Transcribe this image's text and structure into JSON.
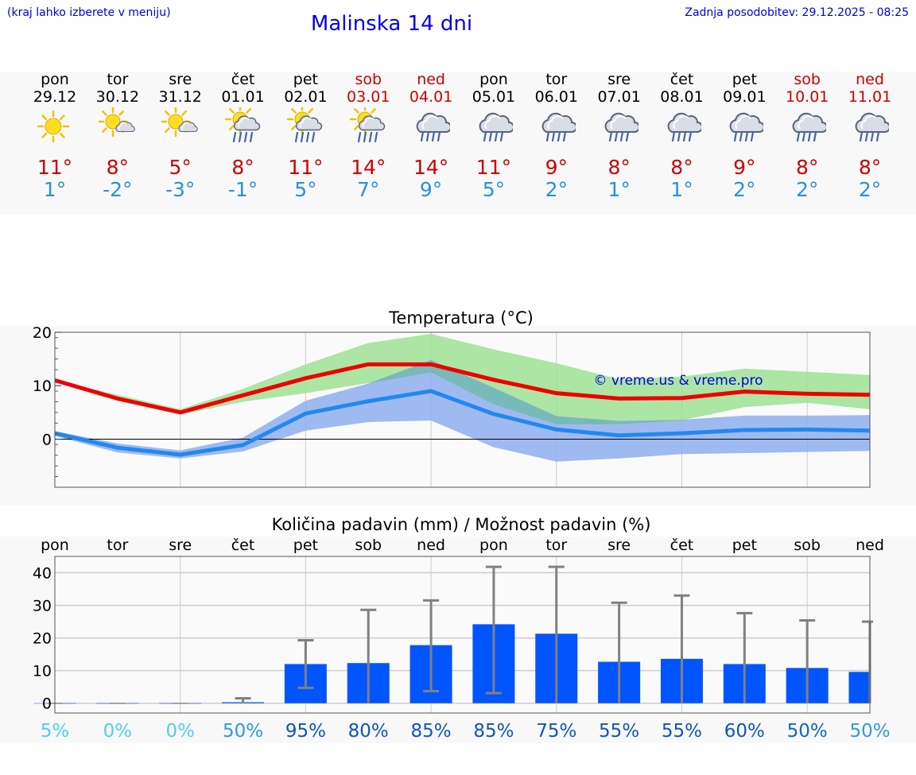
{
  "header": {
    "hint": "(kraj lahko izberete v meniju)",
    "title": "Malinska 14 dni",
    "updated": "Zadnja posodobitev: 29.12.2025 - 08:25"
  },
  "days": [
    {
      "name": "pon",
      "date": "29.12",
      "icon": "sun-icon",
      "tmax": "11°",
      "tmin": "1°",
      "weekend": false
    },
    {
      "name": "tor",
      "date": "30.12",
      "icon": "sun-cloud-icon",
      "tmax": "8°",
      "tmin": "-2°",
      "weekend": false
    },
    {
      "name": "sre",
      "date": "31.12",
      "icon": "sun-cloud-icon",
      "tmax": "5°",
      "tmin": "-3°",
      "weekend": false
    },
    {
      "name": "čet",
      "date": "01.01",
      "icon": "sun-cloud-rain-icon",
      "tmax": "8°",
      "tmin": "-1°",
      "weekend": false
    },
    {
      "name": "pet",
      "date": "02.01",
      "icon": "sun-cloud-rain-icon",
      "tmax": "11°",
      "tmin": "5°",
      "weekend": false
    },
    {
      "name": "sob",
      "date": "03.01",
      "icon": "sun-cloud-rain-icon",
      "tmax": "14°",
      "tmin": "7°",
      "weekend": true
    },
    {
      "name": "ned",
      "date": "04.01",
      "icon": "cloud-rain-icon",
      "tmax": "14°",
      "tmin": "9°",
      "weekend": true
    },
    {
      "name": "pon",
      "date": "05.01",
      "icon": "cloud-rain-icon",
      "tmax": "11°",
      "tmin": "5°",
      "weekend": false
    },
    {
      "name": "tor",
      "date": "06.01",
      "icon": "cloud-rain-icon",
      "tmax": "9°",
      "tmin": "2°",
      "weekend": false
    },
    {
      "name": "sre",
      "date": "07.01",
      "icon": "cloud-rain-icon",
      "tmax": "8°",
      "tmin": "1°",
      "weekend": false
    },
    {
      "name": "čet",
      "date": "08.01",
      "icon": "cloud-rain-icon",
      "tmax": "8°",
      "tmin": "1°",
      "weekend": false
    },
    {
      "name": "pet",
      "date": "09.01",
      "icon": "cloud-rain-icon",
      "tmax": "9°",
      "tmin": "2°",
      "weekend": false
    },
    {
      "name": "sob",
      "date": "10.01",
      "icon": "cloud-rain-icon",
      "tmax": "8°",
      "tmin": "2°",
      "weekend": true
    },
    {
      "name": "ned",
      "date": "11.01",
      "icon": "cloud-rain-icon",
      "tmax": "8°",
      "tmin": "2°",
      "weekend": true
    }
  ],
  "colors": {
    "tmax": "#ee0000",
    "tmin": "#2288ee",
    "tmax_band": "#99e08f",
    "tmin_band": "#88aaee",
    "bar": "#0055ff",
    "error": "#808080"
  },
  "chart_data": [
    {
      "type": "line",
      "title": "Temperatura (°C)",
      "watermark": "© vreme.us & vreme.pro",
      "x": [
        0,
        1,
        2,
        3,
        4,
        5,
        6,
        7,
        8,
        9,
        10,
        11,
        12,
        13
      ],
      "ylim": [
        -9,
        20
      ],
      "yticks": [
        20,
        10,
        0
      ],
      "series": [
        {
          "name": "max",
          "values": [
            11,
            7.6,
            5,
            8.2,
            11.4,
            14,
            14,
            11.1,
            8.6,
            7.6,
            7.7,
            8.9,
            8.5,
            8.3
          ],
          "band_low": [
            11,
            7.2,
            4.6,
            7,
            8.6,
            10.5,
            12.5,
            6.5,
            2.8,
            2.8,
            3.5,
            6,
            6.8,
            5.6
          ],
          "band_high": [
            11,
            8.3,
            5.6,
            9.4,
            14,
            18,
            19.7,
            16.8,
            14.2,
            11.2,
            11.7,
            13.2,
            12.6,
            12
          ]
        },
        {
          "name": "min",
          "values": [
            1.1,
            -1.6,
            -2.9,
            -1.1,
            4.8,
            7.1,
            9,
            4.7,
            1.8,
            0.7,
            1.1,
            1.7,
            1.8,
            1.6
          ],
          "band_low": [
            0.6,
            -2.5,
            -3.6,
            -2.3,
            1.6,
            3.2,
            3.5,
            -1.5,
            -4.2,
            -3.6,
            -2.8,
            -2.6,
            -2.4,
            -2.2
          ],
          "band_high": [
            1.5,
            -0.8,
            -2.1,
            0.3,
            7.2,
            10.4,
            14.8,
            9.6,
            4.3,
            3.4,
            3.6,
            4.4,
            4.4,
            4.5
          ]
        }
      ]
    },
    {
      "type": "bar",
      "title": "Količina padavin (mm) / Možnost padavin (%)",
      "categories": [
        "pon",
        "tor",
        "sre",
        "čet",
        "pet",
        "sob",
        "ned",
        "pon",
        "tor",
        "sre",
        "čet",
        "pet",
        "sob",
        "ned"
      ],
      "ylim": [
        -3,
        45
      ],
      "yticks": [
        40,
        30,
        20,
        10,
        0
      ],
      "values": [
        0,
        0,
        0,
        0.3,
        12,
        12.3,
        17.8,
        24.2,
        21.3,
        12.7,
        13.6,
        12,
        10.8,
        9.6
      ],
      "error_low": [
        0,
        0,
        0,
        0,
        4.7,
        0,
        3.7,
        3.1,
        0,
        0,
        0,
        0,
        0,
        0
      ],
      "error_high": [
        0,
        0,
        0,
        1.5,
        19.3,
        28.6,
        31.5,
        41.8,
        41.8,
        30.8,
        33,
        27.6,
        25.4,
        25
      ],
      "probability": [
        "5%",
        "0%",
        "0%",
        "50%",
        "95%",
        "80%",
        "85%",
        "85%",
        "75%",
        "55%",
        "55%",
        "60%",
        "50%",
        "50%"
      ],
      "probability_colors": [
        "#55ccee",
        "#55ccee",
        "#55ccee",
        "#3399dd",
        "#1155bb",
        "#1155bb",
        "#1155bb",
        "#1155bb",
        "#1155bb",
        "#1155bb",
        "#1155bb",
        "#1155bb",
        "#1166bb",
        "#3399dd"
      ]
    }
  ]
}
